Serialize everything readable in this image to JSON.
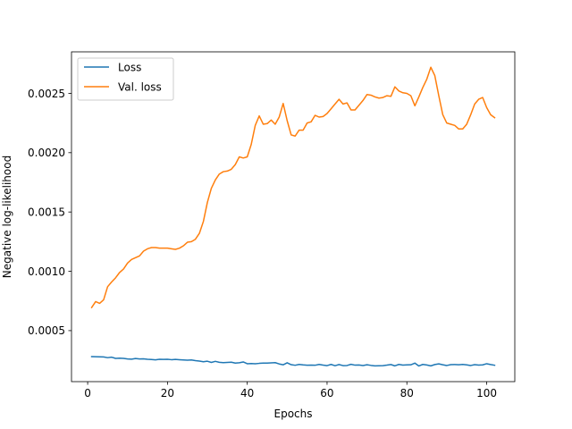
{
  "chart_data": {
    "type": "line",
    "title": "",
    "xlabel": "Epochs",
    "ylabel": "Negative log-likelihood",
    "xlim": [
      -4.05,
      107.05
    ],
    "ylim": [
      7e-05,
      0.00285
    ],
    "xticks": [
      0,
      20,
      40,
      60,
      80,
      100
    ],
    "yticks": [
      0.0005,
      0.001,
      0.0015,
      0.002,
      0.0025
    ],
    "ytick_labels": [
      "0.0005",
      "0.0010",
      "0.0015",
      "0.0020",
      "0.0025"
    ],
    "xtick_labels": [
      "0",
      "20",
      "40",
      "60",
      "80",
      "100"
    ],
    "grid": false,
    "legend_position": "upper-left",
    "series": [
      {
        "name": "Loss",
        "color": "#1f77b4",
        "x": [
          1,
          2,
          3,
          4,
          5,
          6,
          7,
          8,
          9,
          10,
          11,
          12,
          13,
          14,
          15,
          16,
          17,
          18,
          19,
          20,
          21,
          22,
          23,
          24,
          25,
          26,
          27,
          28,
          29,
          30,
          31,
          32,
          33,
          34,
          35,
          36,
          37,
          38,
          39,
          40,
          41,
          42,
          43,
          44,
          45,
          46,
          47,
          48,
          49,
          50,
          51,
          52,
          53,
          54,
          55,
          56,
          57,
          58,
          59,
          60,
          61,
          62,
          63,
          64,
          65,
          66,
          67,
          68,
          69,
          70,
          71,
          72,
          73,
          74,
          75,
          76,
          77,
          78,
          79,
          80,
          81,
          82,
          83,
          84,
          85,
          86,
          87,
          88,
          89,
          90,
          91,
          92,
          93,
          94,
          95,
          96,
          97,
          98,
          99,
          100,
          101,
          102
        ],
        "y": [
          0.000281,
          0.00028,
          0.000279,
          0.000278,
          0.000272,
          0.000276,
          0.000266,
          0.000268,
          0.000266,
          0.000261,
          0.000259,
          0.000265,
          0.000261,
          0.000262,
          0.000258,
          0.000256,
          0.000254,
          0.000258,
          0.000257,
          0.000258,
          0.000255,
          0.000257,
          0.000255,
          0.000253,
          0.000251,
          0.000253,
          0.000247,
          0.000243,
          0.000238,
          0.000242,
          0.000232,
          0.000241,
          0.000233,
          0.00023,
          0.000232,
          0.000234,
          0.000226,
          0.000229,
          0.000236,
          0.000221,
          0.000223,
          0.000221,
          0.000224,
          0.000226,
          0.000226,
          0.000228,
          0.00023,
          0.000219,
          0.000212,
          0.000229,
          0.000213,
          0.000208,
          0.000215,
          0.000211,
          0.000208,
          0.000209,
          0.000208,
          0.000215,
          0.000209,
          0.000205,
          0.000215,
          0.000204,
          0.000214,
          0.000205,
          0.000206,
          0.000216,
          0.000209,
          0.00021,
          0.000206,
          0.000212,
          0.000207,
          0.000203,
          0.000204,
          0.000205,
          0.000209,
          0.000214,
          0.000203,
          0.000215,
          0.000209,
          0.000211,
          0.000212,
          0.000226,
          0.000202,
          0.000215,
          0.00021,
          0.000203,
          0.000214,
          0.00022,
          0.000212,
          0.000206,
          0.000213,
          0.000214,
          0.000212,
          0.000215,
          0.000211,
          0.000206,
          0.000213,
          0.000209,
          0.000211,
          0.000221,
          0.000214,
          0.000208
        ]
      },
      {
        "name": "Val. loss",
        "color": "#ff7f0e",
        "x": [
          1,
          2,
          3,
          4,
          5,
          6,
          7,
          8,
          9,
          10,
          11,
          12,
          13,
          14,
          15,
          16,
          17,
          18,
          19,
          20,
          21,
          22,
          23,
          24,
          25,
          26,
          27,
          28,
          29,
          30,
          31,
          32,
          33,
          34,
          35,
          36,
          37,
          38,
          39,
          40,
          41,
          42,
          43,
          44,
          45,
          46,
          47,
          48,
          49,
          50,
          51,
          52,
          53,
          54,
          55,
          56,
          57,
          58,
          59,
          60,
          61,
          62,
          63,
          64,
          65,
          66,
          67,
          68,
          69,
          70,
          71,
          72,
          73,
          74,
          75,
          76,
          77,
          78,
          79,
          80,
          81,
          82,
          83,
          84,
          85,
          86,
          87,
          88,
          89,
          90,
          91,
          92,
          93,
          94,
          95,
          96,
          97,
          98,
          99,
          100,
          101,
          102
        ],
        "y": [
          0.000695,
          0.000745,
          0.00073,
          0.00076,
          0.00087,
          0.00091,
          0.000945,
          0.00099,
          0.00102,
          0.00107,
          0.0011,
          0.001115,
          0.00113,
          0.00117,
          0.00119,
          0.0012,
          0.0012,
          0.001195,
          0.001195,
          0.001195,
          0.00119,
          0.001185,
          0.001195,
          0.001215,
          0.001245,
          0.00125,
          0.00127,
          0.00132,
          0.00142,
          0.00158,
          0.0017,
          0.00177,
          0.00182,
          0.00184,
          0.001845,
          0.00186,
          0.0019,
          0.001965,
          0.001955,
          0.001965,
          0.00207,
          0.00223,
          0.00231,
          0.00224,
          0.002245,
          0.002275,
          0.00224,
          0.0023,
          0.002415,
          0.00227,
          0.00215,
          0.00214,
          0.00219,
          0.00219,
          0.00225,
          0.00226,
          0.002315,
          0.0023,
          0.002305,
          0.00233,
          0.00237,
          0.00241,
          0.00245,
          0.00241,
          0.00242,
          0.00236,
          0.00236,
          0.0024,
          0.00244,
          0.00249,
          0.002485,
          0.00247,
          0.00246,
          0.002465,
          0.00248,
          0.002475,
          0.002555,
          0.00252,
          0.002505,
          0.0025,
          0.00248,
          0.002395,
          0.00247,
          0.00255,
          0.00262,
          0.00272,
          0.00265,
          0.00248,
          0.00232,
          0.00225,
          0.00224,
          0.00223,
          0.0022,
          0.0022,
          0.00224,
          0.00232,
          0.00241,
          0.00245,
          0.002465,
          0.00238,
          0.00232,
          0.002295
        ]
      }
    ]
  }
}
